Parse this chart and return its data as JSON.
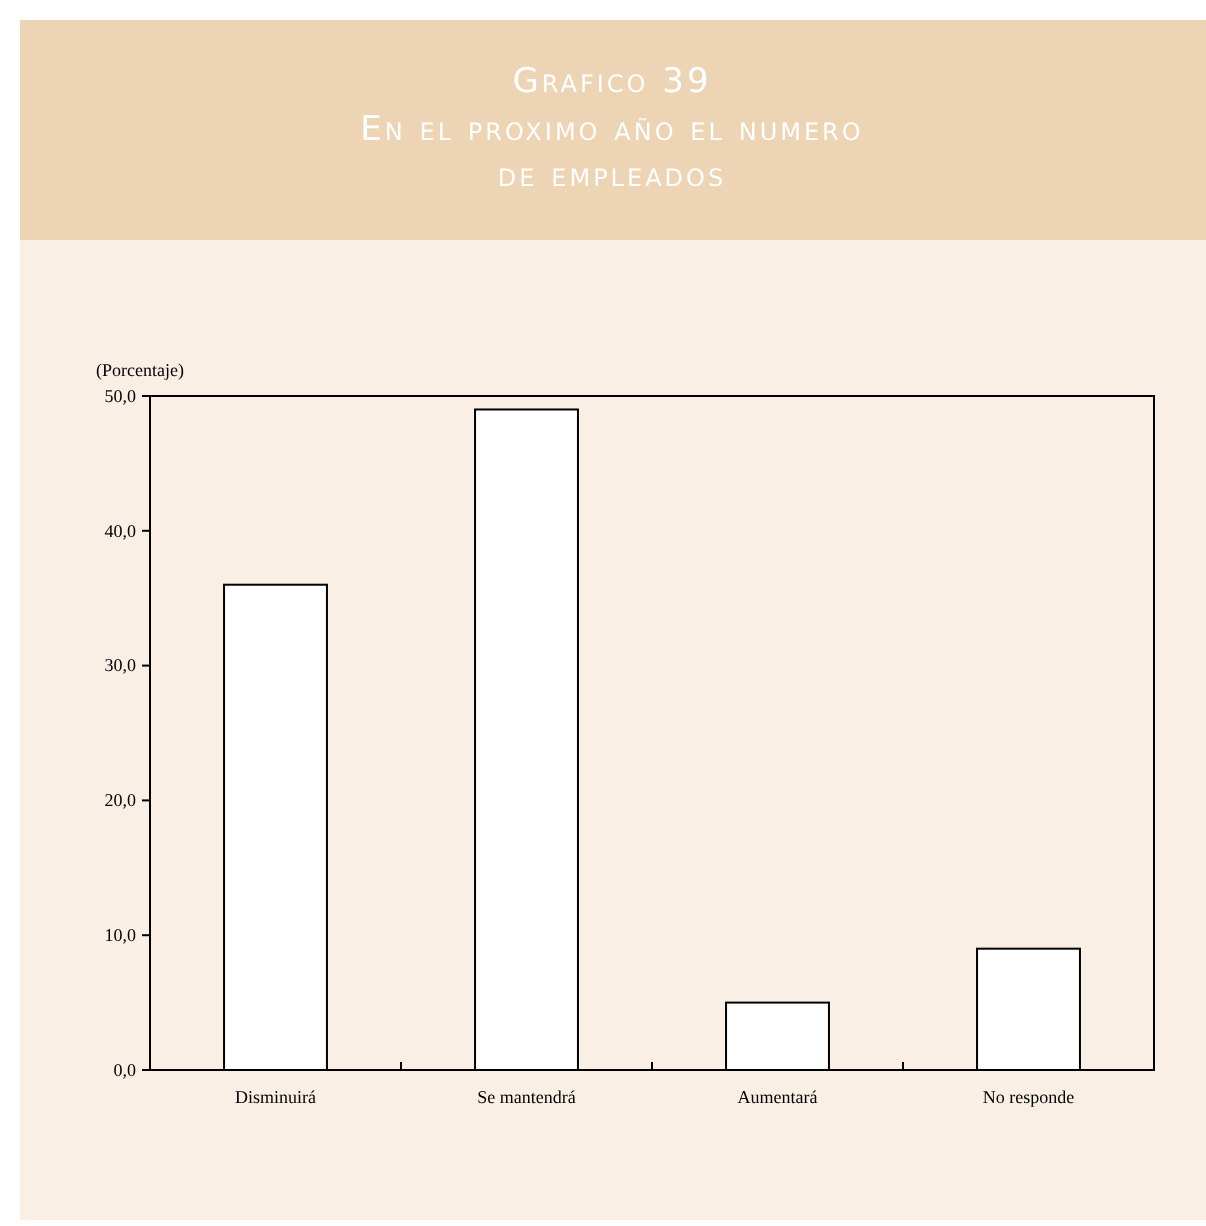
{
  "chart_data": {
    "type": "bar",
    "title": "Grafico 39",
    "subtitle": "En el proximo año el numero de empleados",
    "ylabel": "(Porcentaje)",
    "categories": [
      "Disminuirá",
      "Se mantendrá",
      "Aumentará",
      "No responde"
    ],
    "values": [
      36.0,
      49.0,
      5.0,
      9.0
    ],
    "color": "#ffffff",
    "ylim": [
      0,
      50
    ],
    "yticks": [
      {
        "value": 0,
        "label": "0,0"
      },
      {
        "value": 10,
        "label": "10,0"
      },
      {
        "value": 20,
        "label": "20,0"
      },
      {
        "value": 30,
        "label": "30,0"
      },
      {
        "value": 40,
        "label": "40,0"
      },
      {
        "value": 50,
        "label": "50,0"
      }
    ],
    "grid": false
  }
}
